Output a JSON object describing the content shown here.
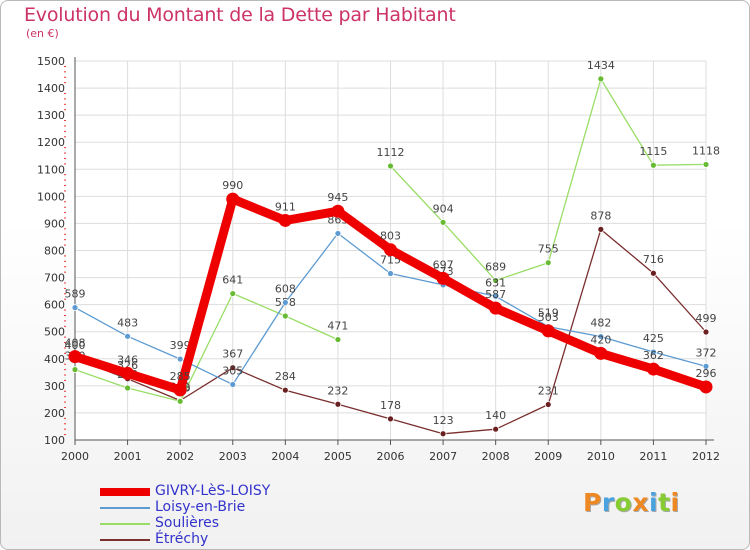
{
  "header": {
    "title": "Evolution du Montant de la Dette par Habitant",
    "unit": "(en €)"
  },
  "logo": {
    "letters": [
      "P",
      "r",
      "o",
      "x",
      "i",
      "t",
      "i"
    ],
    "colors": [
      "#ee8822",
      "#4aa3df",
      "#88cc33",
      "#ee8822",
      "#4aa3df",
      "#88cc33",
      "#ee8822"
    ]
  },
  "chart_data": {
    "type": "line",
    "title": "Evolution du Montant de la Dette par Habitant",
    "ylabel": "(en €)",
    "xlabel": "",
    "x": [
      2000,
      2001,
      2002,
      2003,
      2004,
      2005,
      2006,
      2007,
      2008,
      2009,
      2010,
      2011,
      2012
    ],
    "ylim": [
      100,
      1500
    ],
    "yticks": [
      100,
      200,
      300,
      400,
      500,
      600,
      700,
      800,
      900,
      1000,
      1100,
      1200,
      1300,
      1400,
      1500
    ],
    "grid": true,
    "legend_position": "bottom-left",
    "series": [
      {
        "name": "GIVRY-LèS-LOISY",
        "color": "#ee0000",
        "values": [
          408,
          346,
          285,
          990,
          911,
          945,
          803,
          697,
          587,
          503,
          420,
          362,
          296
        ]
      },
      {
        "name": "Loisy-en-Brie",
        "color": "#5d9bd2",
        "values": [
          589,
          483,
          399,
          305,
          608,
          863,
          715,
          673,
          631,
          519,
          482,
          425,
          372
        ]
      },
      {
        "name": "Soulières",
        "color": "#99dd66",
        "values": [
          360,
          292,
          243,
          641,
          558,
          471,
          null,
          null,
          null,
          null,
          null,
          null,
          null
        ],
        "values_2": [
          null,
          null,
          null,
          null,
          null,
          null,
          1112,
          904,
          689,
          755,
          1434,
          1115,
          1118
        ]
      },
      {
        "name": "Étréchy",
        "color": "#7a2e2e",
        "values": [
          400,
          326,
          246,
          367,
          284,
          232,
          178,
          123,
          140,
          231,
          878,
          716,
          499
        ]
      }
    ]
  }
}
